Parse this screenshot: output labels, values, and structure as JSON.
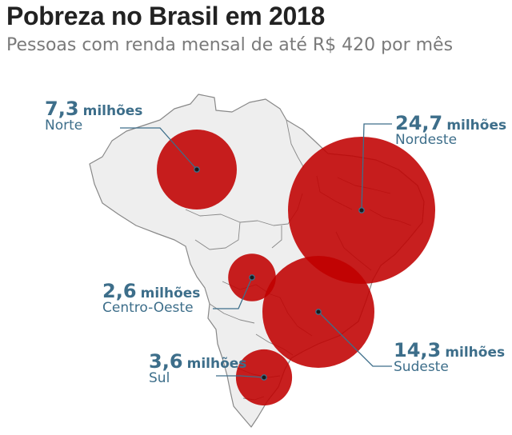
{
  "title": "Pobreza no Brasil em 2018",
  "subtitle": "Pessoas com renda mensal de até R$ 420 por mês",
  "colors": {
    "bubble": "#c00000",
    "land": "#eeeeee",
    "border": "#888888",
    "label": "#3d6e8a",
    "leader": "#3d6e8a"
  },
  "regions": [
    {
      "id": "norte",
      "value": "7,3",
      "unit": "milhões",
      "name": "Norte",
      "millions": 7.3
    },
    {
      "id": "nordeste",
      "value": "24,7",
      "unit": "milhões",
      "name": "Nordeste",
      "millions": 24.7
    },
    {
      "id": "centro-oeste",
      "value": "2,6",
      "unit": "milhões",
      "name": "Centro-Oeste",
      "millions": 2.6
    },
    {
      "id": "sudeste",
      "value": "14,3",
      "unit": "milhões",
      "name": "Sudeste",
      "millions": 14.3
    },
    {
      "id": "sul",
      "value": "3,6",
      "unit": "milhões",
      "name": "Sul",
      "millions": 3.6
    }
  ]
}
